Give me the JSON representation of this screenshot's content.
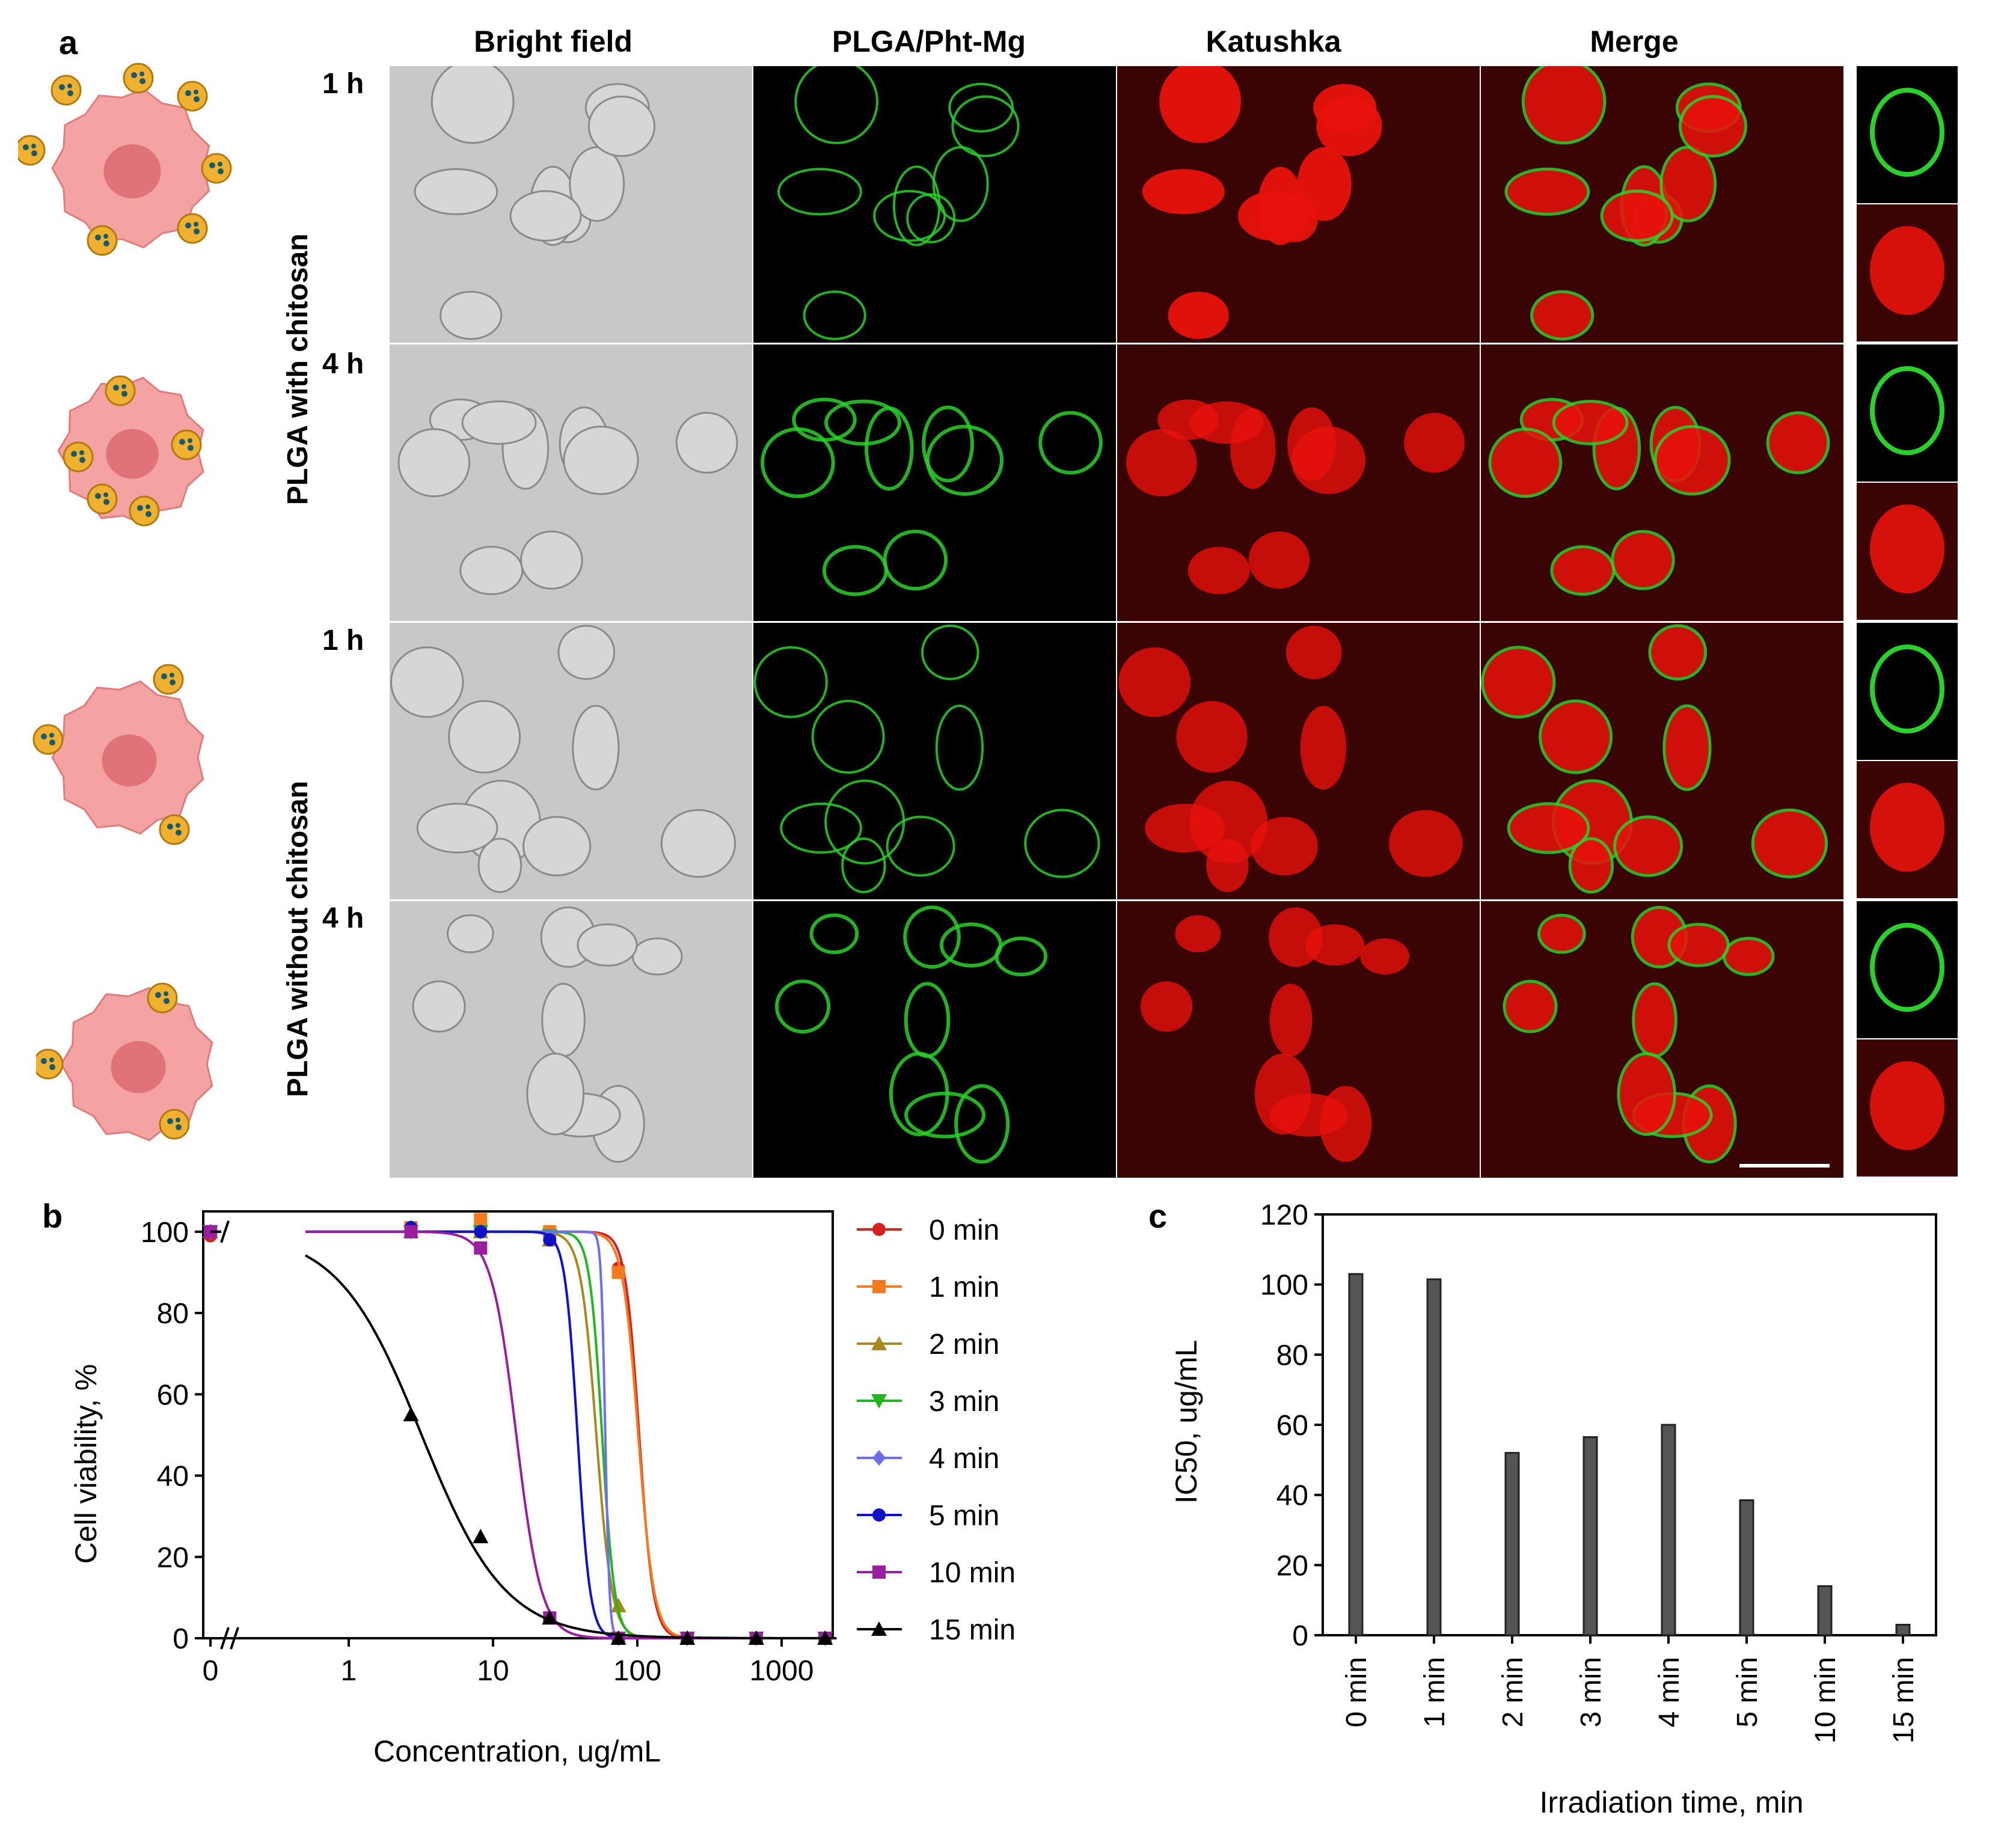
{
  "panel_a": {
    "letter": "a",
    "column_headers": [
      "Bright field",
      "PLGA/Pht-Mg",
      "Katushka",
      "Merge"
    ],
    "groups": [
      {
        "label": "PLGA with chitosan",
        "times": [
          "1 h",
          "4 h"
        ]
      },
      {
        "label": "PLGA without chitosan",
        "times": [
          "1 h",
          "4 h"
        ]
      }
    ],
    "colors": {
      "bright_field": "#c8c8c8",
      "green": "#2ad12a",
      "red": "#e8120c",
      "red_bg": "#3a0404",
      "cell_pink": "#f4a3a3",
      "nucleus": "#e0727a",
      "particle": "#f0b030"
    }
  },
  "panel_b": {
    "letter": "b",
    "chart_data": {
      "type": "line",
      "title": "",
      "xlabel": "Concentration, ug/mL",
      "ylabel": "Cell viability, %",
      "x_scale": "log with zero break",
      "xlim": [
        0,
        2500
      ],
      "ylim": [
        0,
        105
      ],
      "x_tick_labels": [
        "0",
        "1",
        "10",
        "100",
        "1000"
      ],
      "y_tick_labels": [
        "0",
        "20",
        "40",
        "60",
        "80",
        "100"
      ],
      "legend_position": "right",
      "grid": false,
      "x": [
        0,
        2.7,
        8.2,
        24.7,
        74,
        222,
        667,
        2000
      ],
      "series": [
        {
          "name": "0 min",
          "color": "#d62020",
          "marker": "circle",
          "ic50": 103,
          "hill": 9,
          "values": [
            99,
            101,
            101,
            100,
            91,
            0,
            0,
            0
          ]
        },
        {
          "name": "1 min",
          "color": "#f47a1f",
          "marker": "square",
          "ic50": 101.5,
          "hill": 8,
          "values": [
            100,
            101,
            103,
            100,
            90,
            0,
            0,
            0
          ]
        },
        {
          "name": "2 min",
          "color": "#a88a1c",
          "marker": "triangle-up",
          "ic50": 52,
          "hill": 8,
          "values": [
            100,
            100,
            100,
            98,
            8,
            0,
            0,
            0
          ]
        },
        {
          "name": "3 min",
          "color": "#1fb81f",
          "marker": "triangle-down",
          "ic50": 57,
          "hill": 10,
          "values": [
            100,
            100,
            100,
            99,
            0,
            0,
            0,
            0
          ]
        },
        {
          "name": "4 min",
          "color": "#6d6ff0",
          "marker": "diamond",
          "ic50": 60,
          "hill": 30,
          "values": [
            100,
            101,
            100,
            99,
            0,
            0,
            0,
            0
          ]
        },
        {
          "name": "5 min",
          "color": "#1111c8",
          "marker": "circle",
          "ic50": 38.5,
          "hill": 10,
          "values": [
            100,
            101,
            100,
            98,
            0,
            0,
            0,
            0
          ]
        },
        {
          "name": "10 min",
          "color": "#9a1fa0",
          "marker": "square",
          "ic50": 14.5,
          "hill": 5,
          "values": [
            100,
            100,
            96,
            5,
            0,
            0,
            0,
            0
          ]
        },
        {
          "name": "15 min",
          "color": "#000000",
          "marker": "triangle-up",
          "ic50": 3.2,
          "hill": 1.5,
          "values": [
            null,
            55,
            25,
            5,
            0,
            0,
            0,
            0
          ]
        }
      ]
    }
  },
  "panel_c": {
    "letter": "c",
    "chart_data": {
      "type": "bar",
      "title": "",
      "xlabel": "Irradiation time, min",
      "ylabel": "IC50, ug/mL",
      "ylim": [
        0,
        120
      ],
      "y_tick_labels": [
        "0",
        "20",
        "40",
        "60",
        "80",
        "100",
        "120"
      ],
      "categories": [
        "0 min",
        "1 min",
        "2 min",
        "3 min",
        "4 min",
        "5 min",
        "10 min",
        "15 min"
      ],
      "values": [
        103,
        101.5,
        52,
        56.5,
        60,
        38.5,
        14,
        3
      ],
      "bar_color": "#555555",
      "grid": false
    }
  }
}
